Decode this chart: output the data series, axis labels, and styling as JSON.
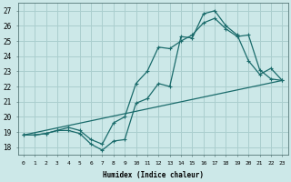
{
  "xlabel": "Humidex (Indice chaleur)",
  "xlim": [
    -0.5,
    23.5
  ],
  "ylim": [
    17.5,
    27.5
  ],
  "xticks": [
    0,
    1,
    2,
    3,
    4,
    5,
    6,
    7,
    8,
    9,
    10,
    11,
    12,
    13,
    14,
    15,
    16,
    17,
    18,
    19,
    20,
    21,
    22,
    23
  ],
  "yticks": [
    18,
    19,
    20,
    21,
    22,
    23,
    24,
    25,
    26,
    27
  ],
  "background_color": "#cce8e8",
  "grid_color": "#aacece",
  "line_color": "#1a6b6b",
  "line1_y": [
    18.8,
    18.8,
    18.9,
    19.1,
    19.1,
    18.9,
    18.2,
    17.8,
    18.4,
    18.5,
    20.9,
    21.2,
    22.2,
    22.0,
    25.3,
    25.2,
    26.8,
    27.0,
    26.0,
    25.4,
    23.7,
    22.8,
    23.2,
    22.4
  ],
  "line2_y": [
    18.8,
    18.8,
    18.9,
    19.1,
    19.3,
    19.1,
    18.5,
    18.2,
    19.6,
    20.0,
    22.2,
    23.0,
    24.6,
    24.5,
    25.0,
    25.4,
    26.2,
    26.5,
    25.8,
    25.3,
    25.4,
    23.1,
    22.5,
    22.4
  ],
  "line3_x": [
    0,
    23
  ],
  "line3_y": [
    18.8,
    22.4
  ]
}
